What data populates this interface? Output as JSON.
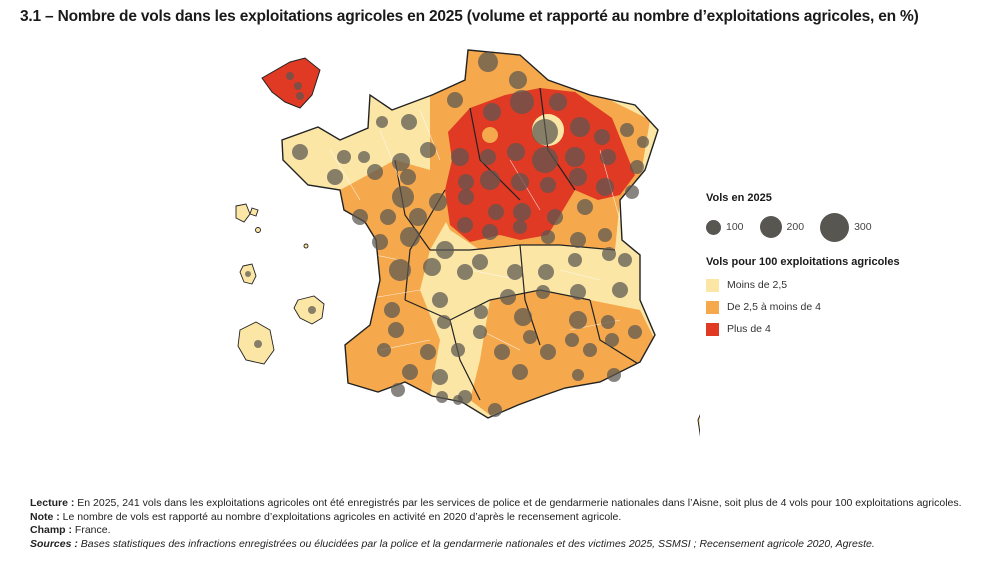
{
  "title": "3.1 – Nombre de vols dans les exploitations agricoles en 2025 (volume et rapporté au nombre d’exploitations agricoles, en %)",
  "colors": {
    "low": "#fbe6a6",
    "mid": "#f5a94c",
    "high": "#e03a24",
    "bubble": "#5a5650",
    "border": "#222222"
  },
  "legend": {
    "size_title": "Vols en 2025",
    "sizes": [
      {
        "label": "100",
        "value": 100
      },
      {
        "label": "200",
        "value": 200
      },
      {
        "label": "300",
        "value": 300
      }
    ],
    "rate_title": "Vols pour 100 exploitations agricoles",
    "categories": [
      {
        "label": "Moins de 2,5",
        "color": "#fbe6a6"
      },
      {
        "label": "De 2,5 à moins de 4",
        "color": "#f5a94c"
      },
      {
        "label": "Plus de 4",
        "color": "#e03a24"
      }
    ]
  },
  "notes": {
    "lecture_label": "Lecture :",
    "lecture": " En 2025, 241 vols dans les exploitations agricoles ont été enregistrés par les services de police et de gendarmerie nationales dans l’Aisne, soit plus de 4 vols pour 100 exploitations agricoles.",
    "note_label": "Note :",
    "note": " Le nombre de vols est rapporté au nombre d’exploitations agricoles en activité en 2020 d’après le recensement agricole.",
    "champ_label": "Champ :",
    "champ": " France.",
    "sources_label": "Sources :",
    "sources": " Bases statistiques des infractions enregistrées ou élucidées par la police et la gendarmerie nationales et des victimes 2025, SSMSI ; Recensement agricole 2020, Agreste."
  }
}
